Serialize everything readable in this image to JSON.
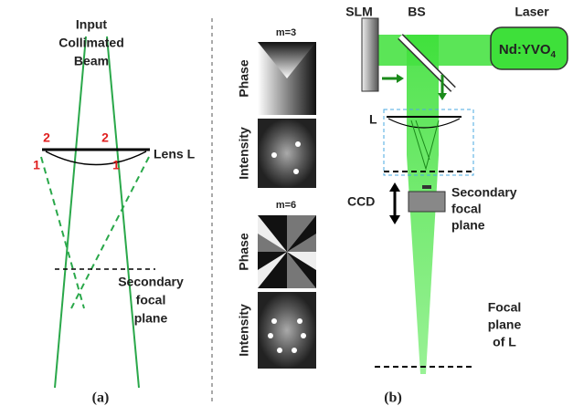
{
  "panel_a": {
    "title_lines": [
      "Input",
      "Collimated",
      "Beam"
    ],
    "lens_label": "Lens L",
    "markers": [
      "2",
      "2",
      "1",
      "1"
    ],
    "focal_label_lines": [
      "Secondary",
      "focal",
      "plane"
    ],
    "caption": "(a)"
  },
  "panel_b": {
    "patterns": [
      {
        "label": "m=3",
        "rows": [
          "Phase",
          "Intensity"
        ]
      },
      {
        "label": "m=6",
        "rows": [
          "Phase",
          "Intensity"
        ]
      }
    ],
    "slm": "SLM",
    "bs": "BS",
    "laser": "Laser",
    "laser_model": {
      "text": "Nd:YVO",
      "subscript": "4"
    },
    "lens": "L",
    "ccd": "CCD",
    "secondary_label_lines": [
      "Secondary",
      "focal",
      "plane"
    ],
    "focal_label_lines": [
      "Focal",
      "plane",
      "of L"
    ],
    "caption": "(b)"
  }
}
